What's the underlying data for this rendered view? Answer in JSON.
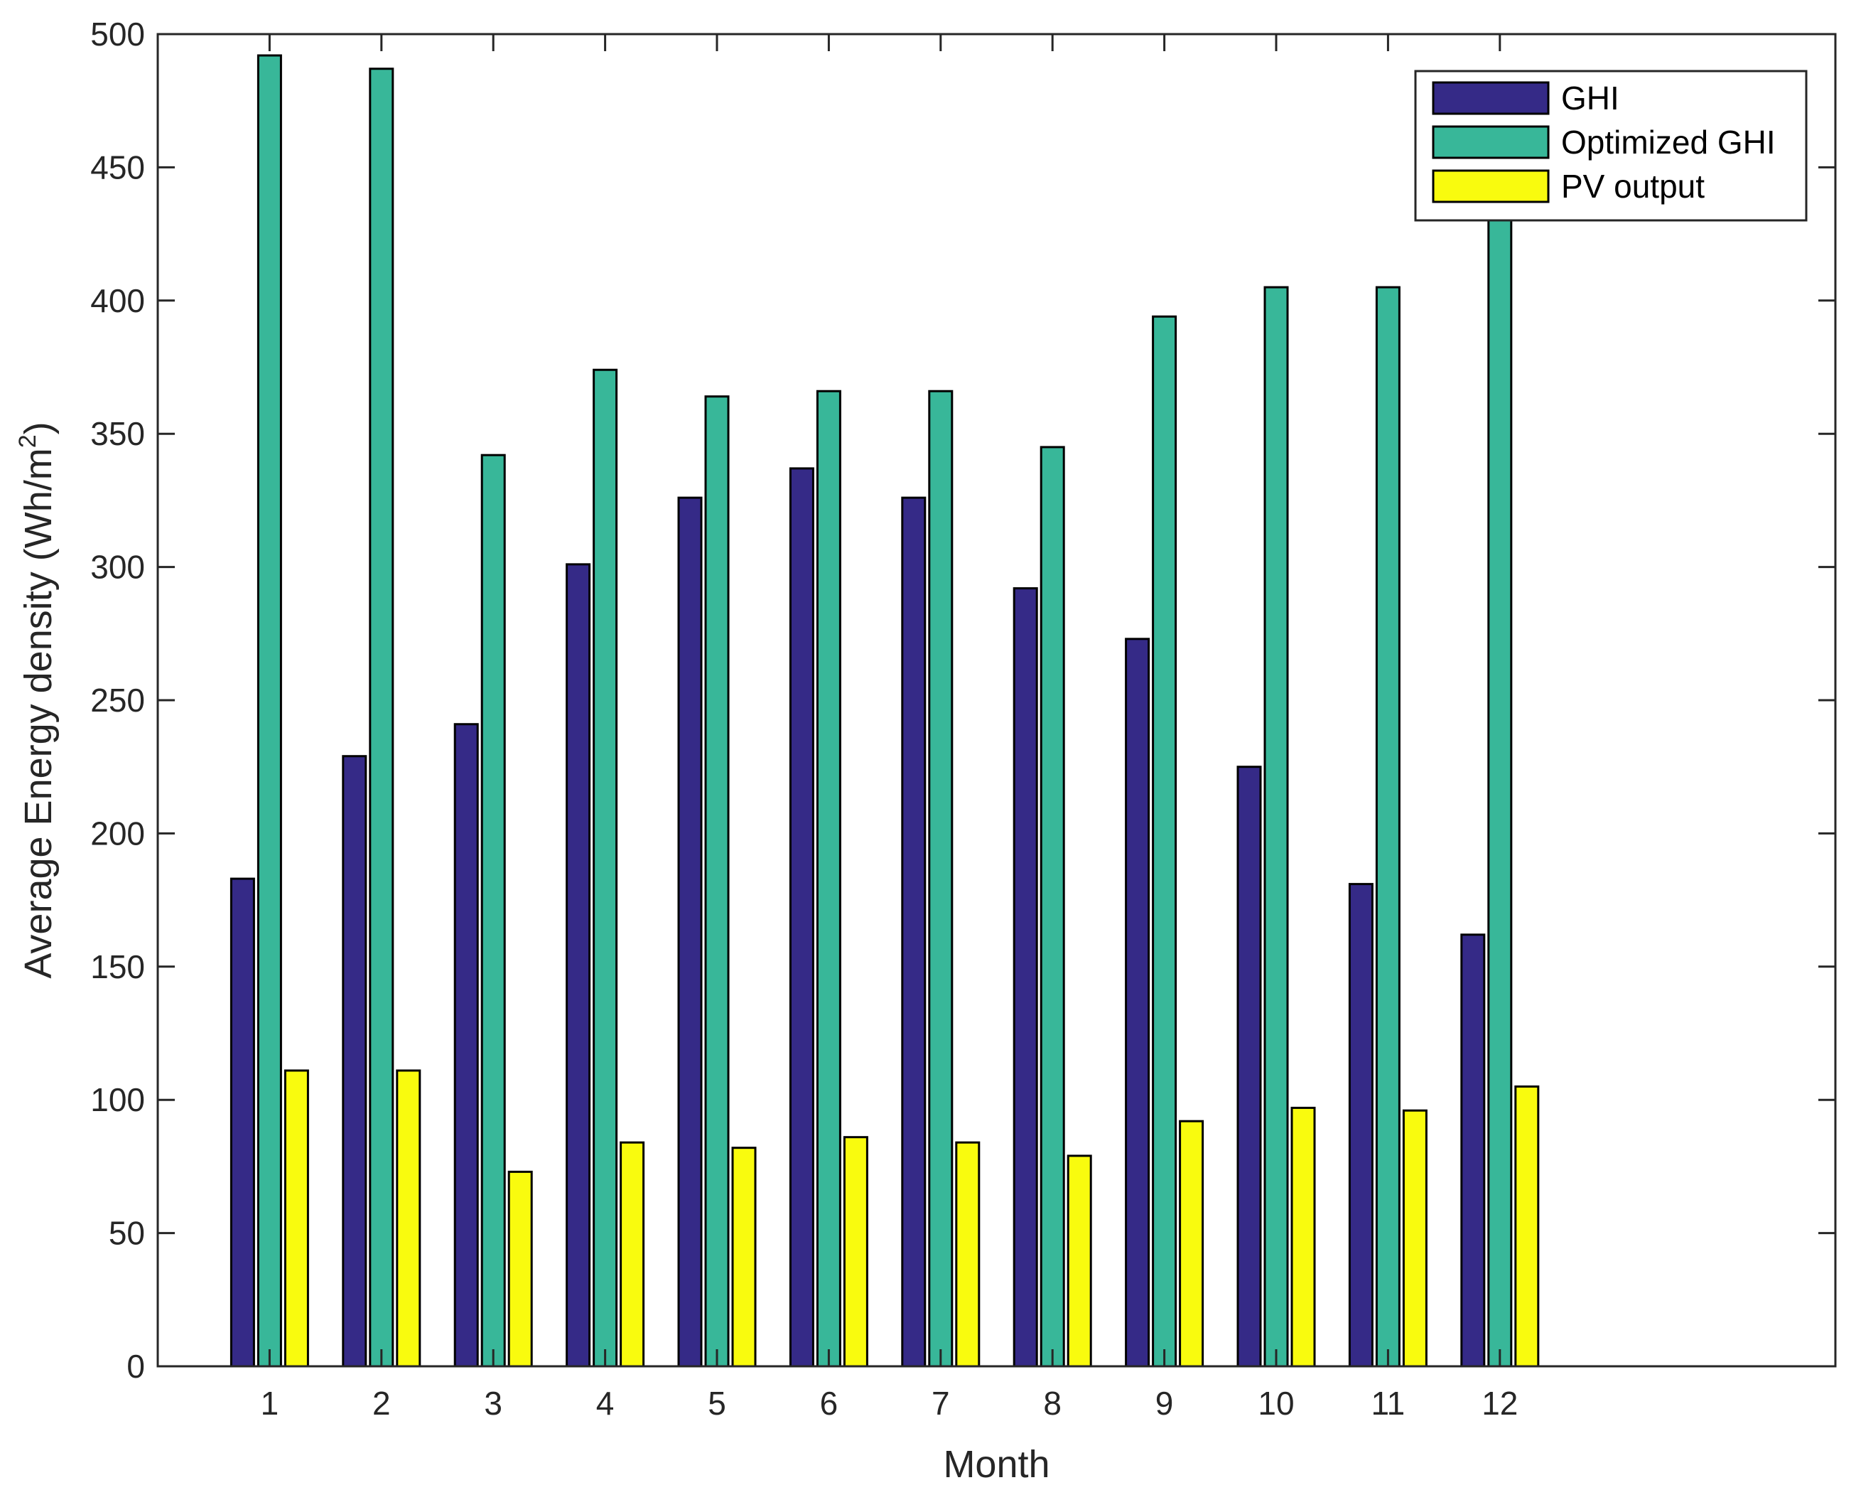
{
  "chart_data": {
    "type": "bar",
    "xlabel": "Month",
    "ylabel": "Average Energy density (Wh/m",
    "ylabel_superscript": "2",
    "ylabel_suffix": ")",
    "categories": [
      "1",
      "2",
      "3",
      "4",
      "5",
      "6",
      "7",
      "8",
      "9",
      "10",
      "11",
      "12"
    ],
    "xlim": [
      0,
      15
    ],
    "ylim": [
      0,
      500
    ],
    "yticks": [
      0,
      50,
      100,
      150,
      200,
      250,
      300,
      350,
      400,
      450,
      500
    ],
    "grid": false,
    "legend_position": "top-right",
    "series": [
      {
        "name": "GHI",
        "color": "#352a87",
        "values": [
          183,
          229,
          241,
          301,
          326,
          337,
          326,
          292,
          273,
          225,
          181,
          162
        ]
      },
      {
        "name": "Optimized GHI",
        "color": "#38b799",
        "values": [
          492,
          487,
          342,
          374,
          364,
          366,
          366,
          345,
          394,
          405,
          405,
          438
        ]
      },
      {
        "name": "PV output",
        "color": "#f9fb0e",
        "values": [
          111,
          111,
          73,
          84,
          82,
          86,
          84,
          79,
          92,
          97,
          96,
          105
        ]
      }
    ]
  }
}
